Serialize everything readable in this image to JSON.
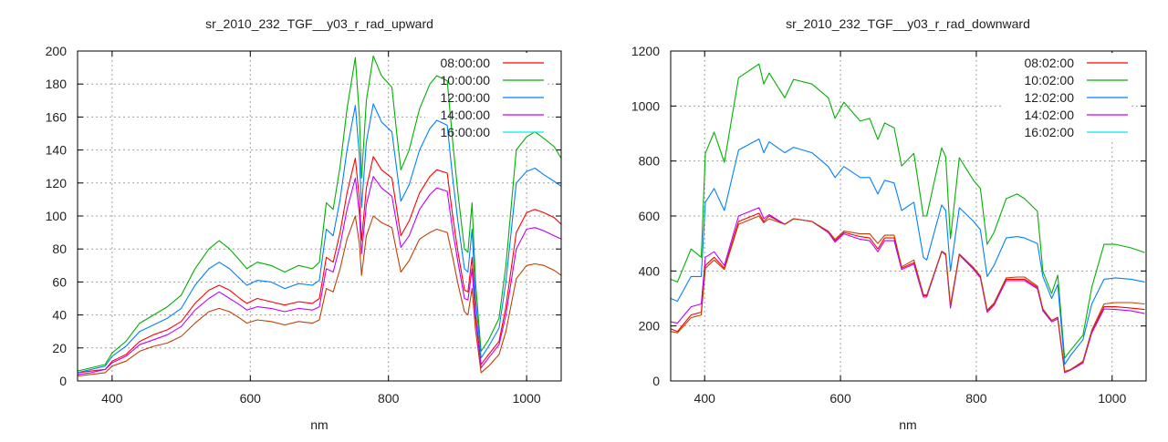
{
  "chart_data": [
    {
      "type": "line",
      "title": "sr_2010_232_TGF__y03_r_rad_upward",
      "xlabel": "nm",
      "ylabel": "",
      "xlim": [
        350,
        1050
      ],
      "ylim": [
        0,
        200
      ],
      "xticks": [
        400,
        600,
        800,
        1000
      ],
      "yticks": [
        0,
        20,
        40,
        60,
        80,
        100,
        120,
        140,
        160,
        180,
        200
      ],
      "grid": true,
      "legend_position": "top-right",
      "x": [
        350,
        370,
        390,
        400,
        420,
        440,
        460,
        480,
        500,
        520,
        540,
        555,
        570,
        585,
        595,
        610,
        630,
        650,
        670,
        690,
        700,
        710,
        720,
        730,
        740,
        752,
        758,
        761,
        768,
        778,
        790,
        805,
        812,
        818,
        830,
        845,
        860,
        870,
        885,
        893,
        901,
        910,
        915,
        921,
        926,
        934,
        945,
        960,
        970,
        985,
        1000,
        1012,
        1025,
        1040,
        1050
      ],
      "series": [
        {
          "name": "08:00:00",
          "color": "#ff0000",
          "legend_color": "#ff0000",
          "values": [
            5,
            6,
            7,
            12,
            16,
            24,
            28,
            31,
            36,
            47,
            55,
            58,
            55,
            50,
            47,
            50,
            48,
            46,
            48,
            47,
            50,
            75,
            72,
            90,
            114,
            135,
            110,
            85,
            117,
            136,
            128,
            123,
            104,
            88,
            97,
            114,
            124,
            128,
            126,
            100,
            77,
            55,
            54,
            75,
            41,
            10,
            16,
            24,
            45,
            90,
            102,
            104,
            102,
            99,
            95
          ]
        },
        {
          "name": "10:00:00",
          "color": "#00b000",
          "legend_color": "#00b000",
          "values": [
            6,
            8,
            10,
            17,
            24,
            35,
            40,
            45,
            52,
            68,
            80,
            85,
            80,
            73,
            68,
            72,
            70,
            66,
            70,
            68,
            72,
            108,
            104,
            130,
            165,
            196,
            160,
            123,
            170,
            197,
            185,
            178,
            150,
            128,
            140,
            165,
            180,
            185,
            182,
            145,
            112,
            80,
            78,
            108,
            60,
            18,
            25,
            38,
            70,
            140,
            148,
            151,
            147,
            142,
            135
          ]
        },
        {
          "name": "12:00:00",
          "color": "#0080ff",
          "legend_color": "#0080ff",
          "values": [
            5,
            7,
            9,
            15,
            21,
            30,
            34,
            38,
            44,
            58,
            68,
            72,
            68,
            62,
            58,
            61,
            60,
            56,
            59,
            58,
            61,
            92,
            88,
            110,
            140,
            167,
            136,
            105,
            145,
            168,
            157,
            151,
            128,
            109,
            119,
            140,
            153,
            158,
            155,
            123,
            95,
            68,
            66,
            92,
            50,
            14,
            21,
            32,
            60,
            120,
            127,
            129,
            125,
            121,
            118
          ]
        },
        {
          "name": "14:00:00",
          "color": "#c000ff",
          "legend_color": "#c000ff",
          "values": [
            4,
            5,
            7,
            11,
            15,
            22,
            25,
            28,
            33,
            43,
            50,
            54,
            50,
            46,
            43,
            45,
            44,
            42,
            44,
            43,
            45,
            68,
            66,
            82,
            104,
            123,
            101,
            77,
            107,
            124,
            117,
            112,
            95,
            81,
            88,
            104,
            113,
            117,
            115,
            91,
            71,
            50,
            49,
            68,
            38,
            8,
            14,
            22,
            40,
            80,
            92,
            93,
            91,
            88,
            86
          ]
        },
        {
          "name": "16:00:00",
          "color": "#c04000",
          "legend_color": "#00eeee",
          "values": [
            3,
            4,
            5,
            9,
            12,
            18,
            21,
            23,
            27,
            35,
            42,
            44,
            42,
            38,
            35,
            37,
            36,
            34,
            36,
            35,
            37,
            56,
            54,
            68,
            86,
            100,
            83,
            64,
            88,
            100,
            96,
            93,
            78,
            66,
            73,
            86,
            90,
            92,
            90,
            75,
            58,
            42,
            40,
            56,
            31,
            5,
            9,
            16,
            30,
            62,
            70,
            71,
            70,
            67,
            64
          ]
        }
      ]
    },
    {
      "type": "line",
      "title": "sr_2010_232_TGF__y03_r_rad_downward",
      "xlabel": "nm",
      "ylabel": "",
      "xlim": [
        350,
        1050
      ],
      "ylim": [
        0,
        1200
      ],
      "xticks": [
        400,
        600,
        800,
        1000
      ],
      "yticks": [
        0,
        200,
        400,
        600,
        800,
        1000,
        1200
      ],
      "grid": true,
      "legend_position": "top-right",
      "x": [
        350,
        360,
        380,
        395,
        401,
        414,
        429,
        450,
        480,
        487,
        495,
        518,
        531,
        558,
        582,
        592,
        605,
        629,
        643,
        655,
        665,
        679,
        690,
        708,
        722,
        727,
        749,
        755,
        762,
        775,
        796,
        806,
        816,
        826,
        844,
        860,
        871,
        890,
        898,
        911,
        920,
        930,
        938,
        957,
        970,
        988,
        1005,
        1028,
        1048
      ],
      "series": [
        {
          "name": "08:02:00",
          "color": "#ff0000",
          "legend_color": "#ff0000",
          "values": [
            190,
            180,
            240,
            250,
            420,
            450,
            410,
            580,
            610,
            580,
            600,
            570,
            590,
            580,
            540,
            510,
            540,
            525,
            520,
            480,
            520,
            520,
            410,
            430,
            310,
            310,
            470,
            460,
            270,
            460,
            410,
            380,
            255,
            280,
            370,
            370,
            370,
            340,
            260,
            220,
            230,
            35,
            40,
            70,
            180,
            270,
            270,
            265,
            260
          ]
        },
        {
          "name": "10:02:00",
          "color": "#00b000",
          "legend_color": "#00b000",
          "values": [
            370,
            360,
            480,
            450,
            828,
            905,
            795,
            1103,
            1153,
            1080,
            1120,
            1030,
            1097,
            1080,
            1030,
            955,
            1014,
            945,
            955,
            878,
            938,
            921,
            782,
            828,
            600,
            600,
            848,
            815,
            517,
            812,
            729,
            700,
            497,
            540,
            663,
            680,
            663,
            617,
            398,
            318,
            385,
            83,
            109,
            166,
            341,
            497,
            497,
            484,
            467
          ]
        },
        {
          "name": "12:02:00",
          "color": "#0080ff",
          "legend_color": "#0080ff",
          "values": [
            300,
            290,
            380,
            380,
            650,
            700,
            620,
            840,
            880,
            830,
            870,
            830,
            850,
            830,
            780,
            740,
            780,
            740,
            740,
            680,
            730,
            720,
            620,
            650,
            450,
            440,
            640,
            620,
            400,
            630,
            580,
            550,
            380,
            420,
            520,
            525,
            520,
            500,
            380,
            300,
            350,
            60,
            90,
            150,
            280,
            370,
            375,
            370,
            360
          ]
        },
        {
          "name": "14:02:00",
          "color": "#c000ff",
          "legend_color": "#c000ff",
          "values": [
            215,
            210,
            270,
            280,
            450,
            470,
            420,
            600,
            630,
            590,
            605,
            570,
            590,
            580,
            540,
            505,
            535,
            515,
            510,
            470,
            510,
            510,
            405,
            425,
            305,
            305,
            470,
            458,
            265,
            458,
            405,
            375,
            250,
            275,
            365,
            365,
            365,
            335,
            255,
            215,
            225,
            30,
            38,
            65,
            175,
            262,
            260,
            255,
            245
          ]
        },
        {
          "name": "16:02:00",
          "color": "#c04000",
          "legend_color": "#00eeee",
          "values": [
            180,
            175,
            230,
            240,
            410,
            440,
            405,
            570,
            600,
            575,
            590,
            570,
            590,
            580,
            545,
            515,
            545,
            535,
            535,
            500,
            530,
            530,
            415,
            440,
            315,
            312,
            472,
            462,
            275,
            462,
            412,
            382,
            258,
            283,
            375,
            378,
            378,
            345,
            262,
            220,
            232,
            35,
            40,
            72,
            185,
            280,
            285,
            285,
            280
          ]
        }
      ]
    }
  ]
}
